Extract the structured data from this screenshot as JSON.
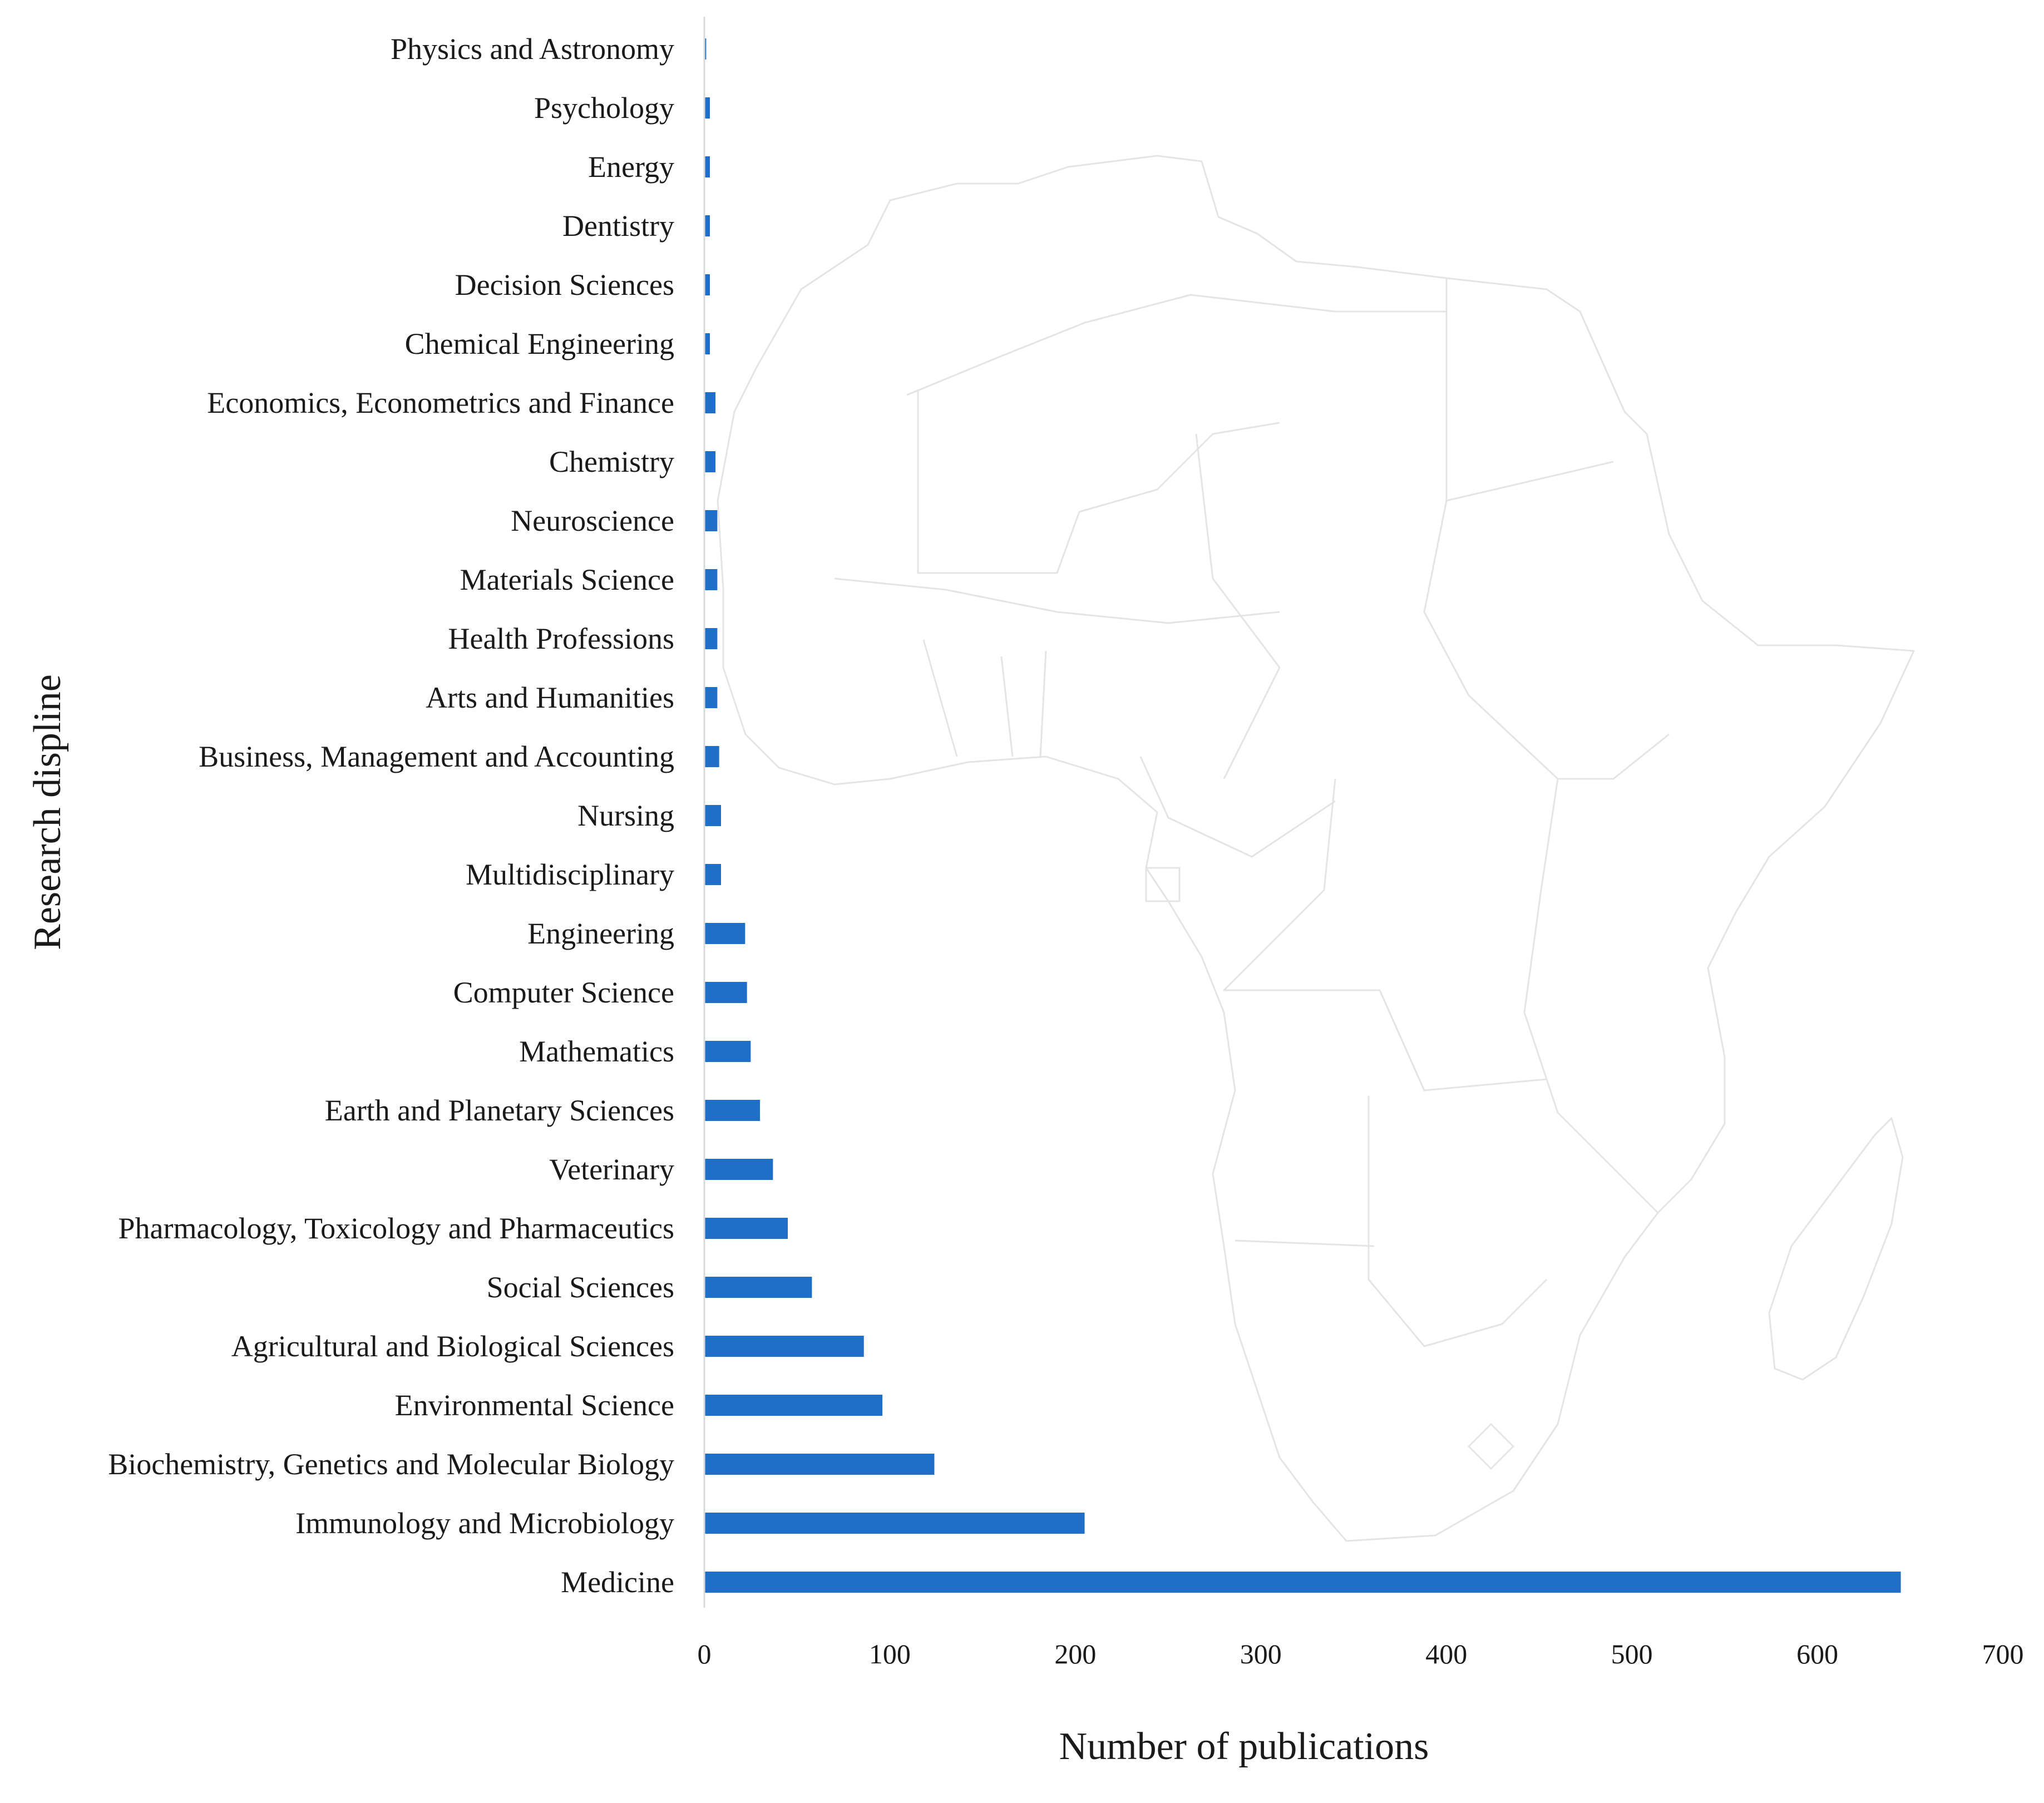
{
  "chart_data": {
    "type": "bar",
    "orientation": "horizontal",
    "title": "",
    "xlabel": "Number of publications",
    "ylabel": "Research displine",
    "xlim": [
      0,
      700
    ],
    "x_ticks": [
      0,
      100,
      200,
      300,
      400,
      500,
      600,
      700
    ],
    "grid": false,
    "legend": "none",
    "bar_color": "#1f6fc9",
    "background_decoration": "africa-map-outline",
    "map_outline_color": "#e4e4e4",
    "categories": [
      "Physics and Astronomy",
      "Psychology",
      "Energy",
      "Dentistry",
      "Decision Sciences",
      "Chemical Engineering",
      "Economics, Econometrics and Finance",
      "Chemistry",
      "Neuroscience",
      "Materials Science",
      "Health Professions",
      "Arts and Humanities",
      "Business, Management and Accounting",
      "Nursing",
      "Multidisciplinary",
      "Engineering",
      "Computer Science",
      "Mathematics",
      "Earth and Planetary Sciences",
      "Veterinary",
      "Pharmacology, Toxicology and Pharmaceutics",
      "Social Sciences",
      "Agricultural and Biological Sciences",
      "Environmental Science",
      "Biochemistry, Genetics and Molecular Biology",
      "Immunology and Microbiology",
      "Medicine"
    ],
    "values": [
      1,
      3,
      3,
      3,
      3,
      3,
      6,
      6,
      7,
      7,
      7,
      7,
      8,
      9,
      9,
      22,
      23,
      25,
      30,
      37,
      45,
      58,
      86,
      96,
      124,
      205,
      645
    ]
  }
}
